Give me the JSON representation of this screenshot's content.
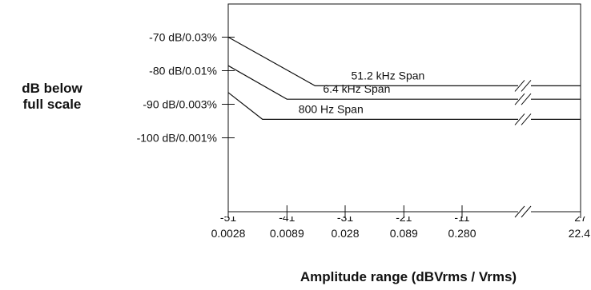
{
  "chart_data": {
    "type": "line",
    "title": "",
    "ylabel": "dB below full scale",
    "ylabel_lines": [
      "dB below",
      "full scale"
    ],
    "xlabel": "Amplitude range (dBVrms / Vrms)",
    "y_ticks": [
      {
        "value": -70,
        "label": "-70 dB/0.03%"
      },
      {
        "value": -80,
        "label": "-80 dB/0.01%"
      },
      {
        "value": -90,
        "label": "-90 dB/0.003%"
      },
      {
        "value": -100,
        "label": "-100 dB/0.001%"
      }
    ],
    "x_ticks": [
      {
        "value": 0.0028,
        "label": "0.0028",
        "top_partial": "-51"
      },
      {
        "value": 0.0089,
        "label": "0.0089",
        "top_partial": "-41"
      },
      {
        "value": 0.028,
        "label": "0.028",
        "top_partial": "-31"
      },
      {
        "value": 0.089,
        "label": "0.089",
        "top_partial": "-21"
      },
      {
        "value": 0.28,
        "label": "0.280",
        "top_partial": "-11"
      },
      {
        "value": 22.4,
        "label": "22.4",
        "top_partial": "27"
      }
    ],
    "ylim": [
      -103.5,
      -62
    ],
    "xscale": "log, axis break between 0.280 and 22.4",
    "series": [
      {
        "name": "51.2 kHz Span",
        "x": [
          0.0028,
          0.0155,
          22.4
        ],
        "y": [
          -70,
          -84.5,
          -84.5
        ]
      },
      {
        "name": "6.4 kHz Span",
        "x": [
          0.0028,
          0.0089,
          22.4
        ],
        "y": [
          -78.5,
          -88.5,
          -88.5
        ]
      },
      {
        "name": "800 Hz Span",
        "x": [
          0.0028,
          0.0055,
          22.4
        ],
        "y": [
          -86.5,
          -94.5,
          -94.5
        ]
      }
    ]
  }
}
